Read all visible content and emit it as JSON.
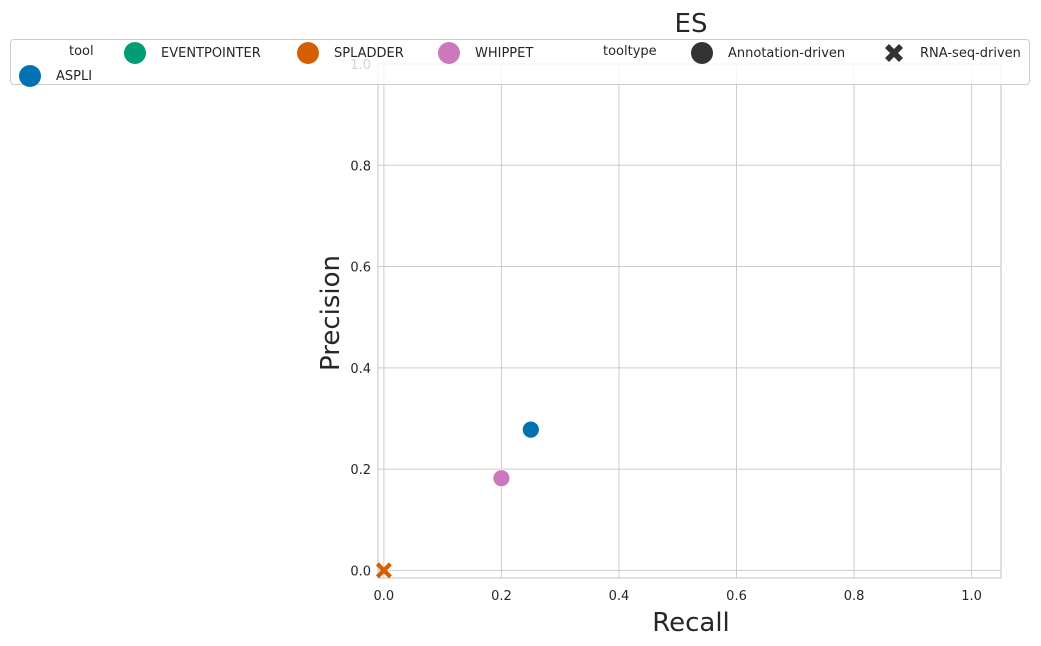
{
  "chart_data": {
    "type": "scatter",
    "title": "ES",
    "xlabel": "Recall",
    "ylabel": "Precision",
    "xlim": [
      -0.01,
      1.05
    ],
    "ylim": [
      -0.015,
      1.0
    ],
    "xticks": [
      "0.0",
      "0.2",
      "0.4",
      "0.6",
      "0.8",
      "1.0"
    ],
    "yticks": [
      "0.0",
      "0.2",
      "0.4",
      "0.6",
      "0.8",
      "1.0"
    ],
    "grid": true,
    "legend_placement": "top",
    "points": [
      {
        "tool": "ASPLI",
        "tooltype": "Annotation-driven",
        "x": 0.25,
        "y": 0.278
      },
      {
        "tool": "WHIPPET",
        "tooltype": "Annotation-driven",
        "x": 0.2,
        "y": 0.182
      },
      {
        "tool": "SPLADDER",
        "tooltype": "RNA-seq-driven",
        "x": 0.0,
        "y": 0.0
      }
    ],
    "tool_colors": {
      "ASPLI": "#0173b2",
      "EVENTPOINTER": "#029e73",
      "SPLADDER": "#d55e00",
      "WHIPPET": "#cc78bc"
    },
    "tooltype_markers": {
      "Annotation-driven": "circle",
      "RNA-seq-driven": "x"
    }
  },
  "legend": {
    "tool_heading": "tool",
    "tools": [
      "EVENTPOINTER",
      "SPLADDER",
      "WHIPPET",
      "ASPLI"
    ],
    "tooltype_heading": "tooltype",
    "tooltypes": [
      "Annotation-driven",
      "RNA-seq-driven"
    ],
    "marker_color": "#333333"
  }
}
